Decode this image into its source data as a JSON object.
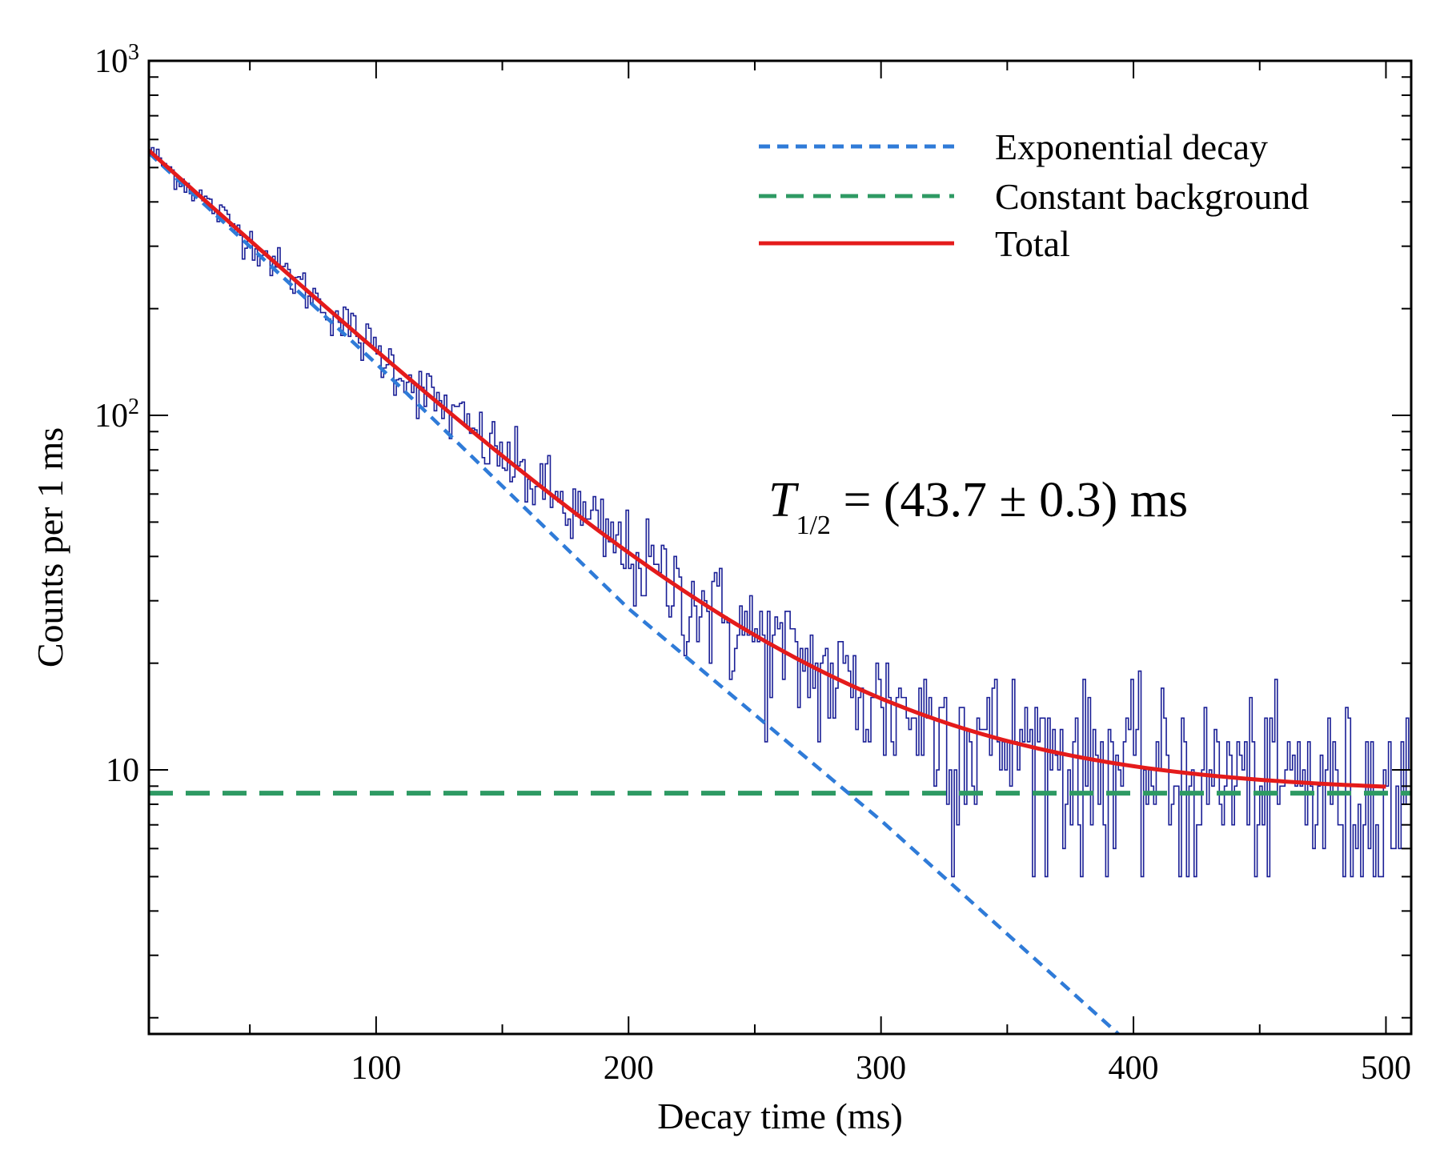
{
  "chart_data": {
    "type": "line",
    "title": "",
    "xlabel": "Decay time (ms)",
    "ylabel": "Counts per 1 ms",
    "xlim": [
      10,
      510
    ],
    "ylim": [
      1.8,
      1000
    ],
    "yscale": "log",
    "x_ticks": [
      100,
      200,
      300,
      400,
      500
    ],
    "x_tick_labels": [
      "100",
      "200",
      "300",
      "400",
      "500"
    ],
    "y_ticks": [
      10,
      100,
      1000
    ],
    "y_tick_labels": [
      {
        "base": "10",
        "exp": ""
      },
      {
        "base": "10",
        "exp": "2"
      },
      {
        "base": "10",
        "exp": "3"
      }
    ],
    "legend": {
      "placement": "top-right",
      "entries": [
        {
          "label": "Exponential decay",
          "color": "#2f7bd8",
          "style": "dashed"
        },
        {
          "label": "Constant background",
          "color": "#2e9a63",
          "style": "dashed"
        },
        {
          "label": "Total",
          "color": "#e41b1b",
          "style": "solid"
        }
      ]
    },
    "annotation": {
      "symbol": "T",
      "subscript": "1/2",
      "text": " = (43.7 ± 0.3) ms"
    },
    "series": [
      {
        "name": "Data histogram",
        "color": "#1a1f96",
        "style": "step",
        "bin_width_ms": 1,
        "x_range": [
          10,
          510
        ],
        "sample_points": [
          {
            "x": 10,
            "y": 540
          },
          {
            "x": 50,
            "y": 360
          },
          {
            "x": 100,
            "y": 150
          },
          {
            "x": 150,
            "y": 70
          },
          {
            "x": 200,
            "y": 36
          },
          {
            "x": 250,
            "y": 18
          },
          {
            "x": 300,
            "y": 13
          },
          {
            "x": 350,
            "y": 12
          },
          {
            "x": 400,
            "y": 10
          },
          {
            "x": 450,
            "y": 9
          },
          {
            "x": 500,
            "y": 9
          }
        ]
      },
      {
        "name": "Exponential decay",
        "color": "#2f7bd8",
        "style": "dashed",
        "x": [
          10,
          100,
          200,
          300,
          394
        ],
        "y": [
          550,
          140,
          28.5,
          7.2,
          1.8
        ]
      },
      {
        "name": "Constant background",
        "color": "#2e9a63",
        "style": "dashed",
        "x": [
          10,
          510
        ],
        "y": [
          8.6,
          8.6
        ]
      },
      {
        "name": "Total",
        "color": "#e41b1b",
        "style": "solid",
        "x": [
          10,
          50,
          100,
          150,
          200,
          250,
          300,
          350,
          400,
          450,
          500
        ],
        "y": [
          560,
          300,
          140,
          72,
          37,
          22,
          14,
          11,
          9.5,
          8.9,
          8.7
        ]
      }
    ]
  }
}
